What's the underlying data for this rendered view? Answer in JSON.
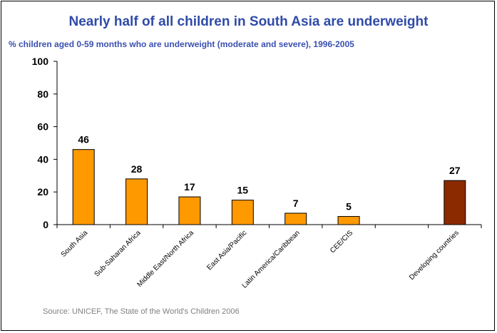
{
  "colors": {
    "title": "#2f4ba8",
    "subtitle": "#3a50b0",
    "bar": "#ff9900",
    "bar_highlight": "#8b2a00",
    "axis": "#000000",
    "source": "#808080"
  },
  "chart_data": {
    "type": "bar",
    "title": "Nearly half of all children in South Asia are underweight",
    "subtitle": "% children aged 0-59 months who are underweight (moderate and severe), 1996-2005",
    "categories": [
      "South Asia",
      "Sub-Saharan Africa",
      "Middle East/North Africa",
      "East Asia/Pacific",
      "Latin America/Caribbean",
      "CEE/CIS",
      "",
      "Developing countries"
    ],
    "values": [
      46,
      28,
      17,
      15,
      7,
      5,
      null,
      27
    ],
    "data_labels": [
      "46",
      "28",
      "17",
      "15",
      "7",
      "5",
      "",
      "27"
    ],
    "highlight_index": 7,
    "ylim": [
      0,
      100
    ],
    "yticks": [
      0,
      20,
      40,
      60,
      80,
      100
    ],
    "xlabel": "",
    "ylabel": "",
    "grid": false,
    "legend": "none",
    "source": "Source: UNICEF, The State of the World's Children 2006"
  }
}
